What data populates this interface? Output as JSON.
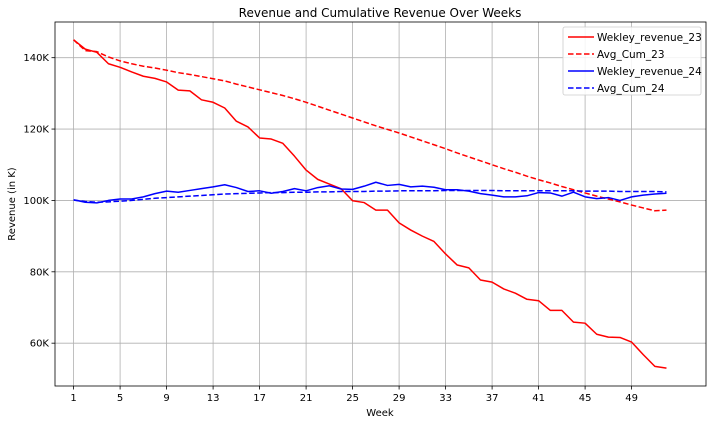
{
  "chart_data": {
    "type": "line",
    "title": "Revenue and Cumulative Revenue Over Weeks",
    "xlabel": "Week",
    "ylabel": "Revenue (in K)",
    "xlim": [
      -0.6,
      55.4
    ],
    "ylim": [
      48000,
      150000
    ],
    "x_ticks": [
      1,
      5,
      9,
      13,
      17,
      21,
      25,
      29,
      33,
      37,
      41,
      45,
      49
    ],
    "y_ticks": [
      60000,
      80000,
      100000,
      120000,
      140000
    ],
    "y_tick_labels": [
      "60K",
      "80K",
      "100K",
      "120K",
      "140K"
    ],
    "grid": true,
    "legend_position": "top-right",
    "x": [
      1,
      2,
      3,
      4,
      5,
      6,
      7,
      8,
      9,
      10,
      11,
      12,
      13,
      14,
      15,
      16,
      17,
      18,
      19,
      20,
      21,
      22,
      23,
      24,
      25,
      26,
      27,
      28,
      29,
      30,
      31,
      32,
      33,
      34,
      35,
      36,
      37,
      38,
      39,
      40,
      41,
      42,
      43,
      44,
      45,
      46,
      47,
      48,
      49,
      50,
      51,
      52
    ],
    "series": [
      {
        "name": "Wekley_revenue_23",
        "color": "#ff0000",
        "style": "solid",
        "values": [
          145000,
          142400,
          141500,
          138300,
          137300,
          136000,
          134800,
          134200,
          133200,
          130900,
          130700,
          128200,
          127500,
          125900,
          122200,
          120600,
          117500,
          117200,
          116000,
          112400,
          108500,
          105900,
          104600,
          103300,
          99900,
          99400,
          97300,
          97300,
          93700,
          91700,
          90000,
          88500,
          85000,
          81900,
          81100,
          77700,
          77100,
          75200,
          74000,
          72300,
          71900,
          69200,
          69200,
          65900,
          65600,
          62500,
          61700,
          61600,
          60300,
          56800,
          53500,
          53000
        ]
      },
      {
        "name": "Avg_Cum_23",
        "color": "#ff0000",
        "style": "dashed",
        "values": [
          145000,
          142000,
          141700,
          140200,
          139100,
          138300,
          137600,
          137100,
          136500,
          135800,
          135300,
          134700,
          134100,
          133500,
          132600,
          131800,
          131000,
          130200,
          129400,
          128500,
          127500,
          126400,
          125300,
          124200,
          123100,
          122000,
          120900,
          119900,
          118900,
          117800,
          116700,
          115600,
          114500,
          113300,
          112200,
          111100,
          110000,
          108900,
          107900,
          106800,
          105800,
          104900,
          103900,
          103000,
          102100,
          101200,
          100400,
          99600,
          98700,
          97900,
          97100,
          97300
        ]
      },
      {
        "name": "Wekley_revenue_24",
        "color": "#0000ff",
        "style": "solid",
        "values": [
          100200,
          99500,
          99300,
          100000,
          100400,
          100400,
          101000,
          101900,
          102600,
          102300,
          102800,
          103300,
          103800,
          104400,
          103600,
          102500,
          102700,
          102000,
          102500,
          103300,
          102700,
          103600,
          104100,
          103200,
          103100,
          104000,
          105100,
          104200,
          104500,
          103800,
          104000,
          103700,
          103000,
          103000,
          102600,
          101900,
          101500,
          101000,
          101000,
          101300,
          102200,
          102100,
          101200,
          102300,
          101000,
          100500,
          100800,
          100000,
          101000,
          101500,
          101800,
          102000
        ]
      },
      {
        "name": "Avg_Cum_24",
        "color": "#0000ff",
        "style": "dashed",
        "values": [
          100100,
          99700,
          99500,
          99600,
          99800,
          100000,
          100300,
          100600,
          100800,
          101000,
          101200,
          101400,
          101600,
          101800,
          101900,
          102000,
          102100,
          102200,
          102200,
          102300,
          102300,
          102400,
          102400,
          102500,
          102500,
          102500,
          102600,
          102600,
          102700,
          102700,
          102700,
          102700,
          102800,
          102800,
          102800,
          102800,
          102800,
          102700,
          102700,
          102700,
          102700,
          102700,
          102700,
          102700,
          102600,
          102600,
          102600,
          102500,
          102500,
          102500,
          102500,
          102400
        ]
      }
    ]
  }
}
